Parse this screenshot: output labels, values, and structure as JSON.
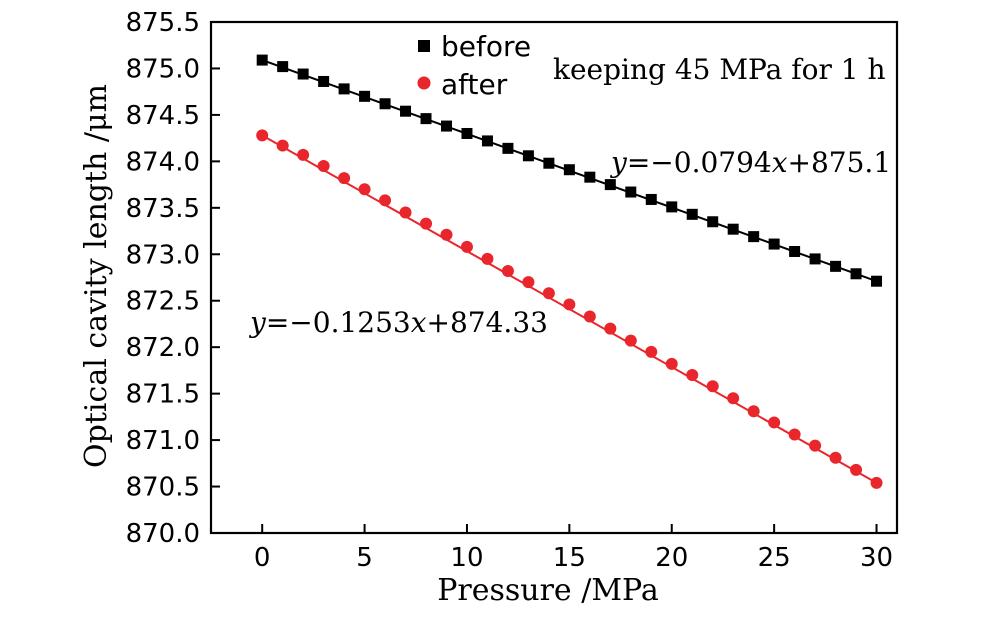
{
  "chart_data": {
    "type": "scatter",
    "xlabel": "Pressure /MPa",
    "ylabel": "Optical cavity length /μm",
    "xlim": [
      -2.5,
      31
    ],
    "ylim": [
      870.0,
      875.5
    ],
    "xticks": [
      0,
      5,
      10,
      15,
      20,
      25,
      30
    ],
    "yticks": [
      870.0,
      870.5,
      871.0,
      871.5,
      872.0,
      872.5,
      873.0,
      873.5,
      874.0,
      874.5,
      875.0,
      875.5
    ],
    "x": [
      0,
      1,
      2,
      3,
      4,
      5,
      6,
      7,
      8,
      9,
      10,
      11,
      12,
      13,
      14,
      15,
      16,
      17,
      18,
      19,
      20,
      21,
      22,
      23,
      24,
      25,
      26,
      27,
      28,
      29,
      30
    ],
    "series": [
      {
        "name": "before",
        "marker": "square",
        "color": "#000000",
        "fit_slope": -0.0794,
        "fit_intercept": 875.1,
        "values": [
          875.09,
          875.02,
          874.94,
          874.86,
          874.78,
          874.7,
          874.62,
          874.54,
          874.46,
          874.38,
          874.3,
          874.22,
          874.14,
          874.06,
          873.98,
          873.91,
          873.83,
          873.75,
          873.67,
          873.59,
          873.51,
          873.43,
          873.35,
          873.27,
          873.19,
          873.11,
          873.03,
          872.95,
          872.87,
          872.79,
          872.71
        ]
      },
      {
        "name": "after",
        "marker": "circle",
        "color": "#e8262b",
        "fit_slope": -0.1253,
        "fit_intercept": 874.33,
        "values": [
          874.28,
          874.17,
          874.07,
          873.95,
          873.82,
          873.7,
          873.58,
          873.45,
          873.33,
          873.21,
          873.08,
          872.95,
          872.82,
          872.7,
          872.58,
          872.46,
          872.33,
          872.2,
          872.07,
          871.95,
          871.82,
          871.7,
          871.58,
          871.45,
          871.31,
          871.19,
          871.06,
          870.94,
          870.81,
          870.68,
          870.54
        ]
      }
    ],
    "legend": {
      "placement": "top-center",
      "entries": [
        "before",
        "after"
      ]
    },
    "annotations": {
      "condition": "keeping 45 MPa for 1 h",
      "fit_before": {
        "var": "y",
        "rest": "=−0.0794",
        "x": "x",
        "tail": "+875.1"
      },
      "fit_after": {
        "var": "y",
        "rest": "=−0.1253",
        "x": "x",
        "tail": "+874.33"
      }
    },
    "grid": false
  }
}
